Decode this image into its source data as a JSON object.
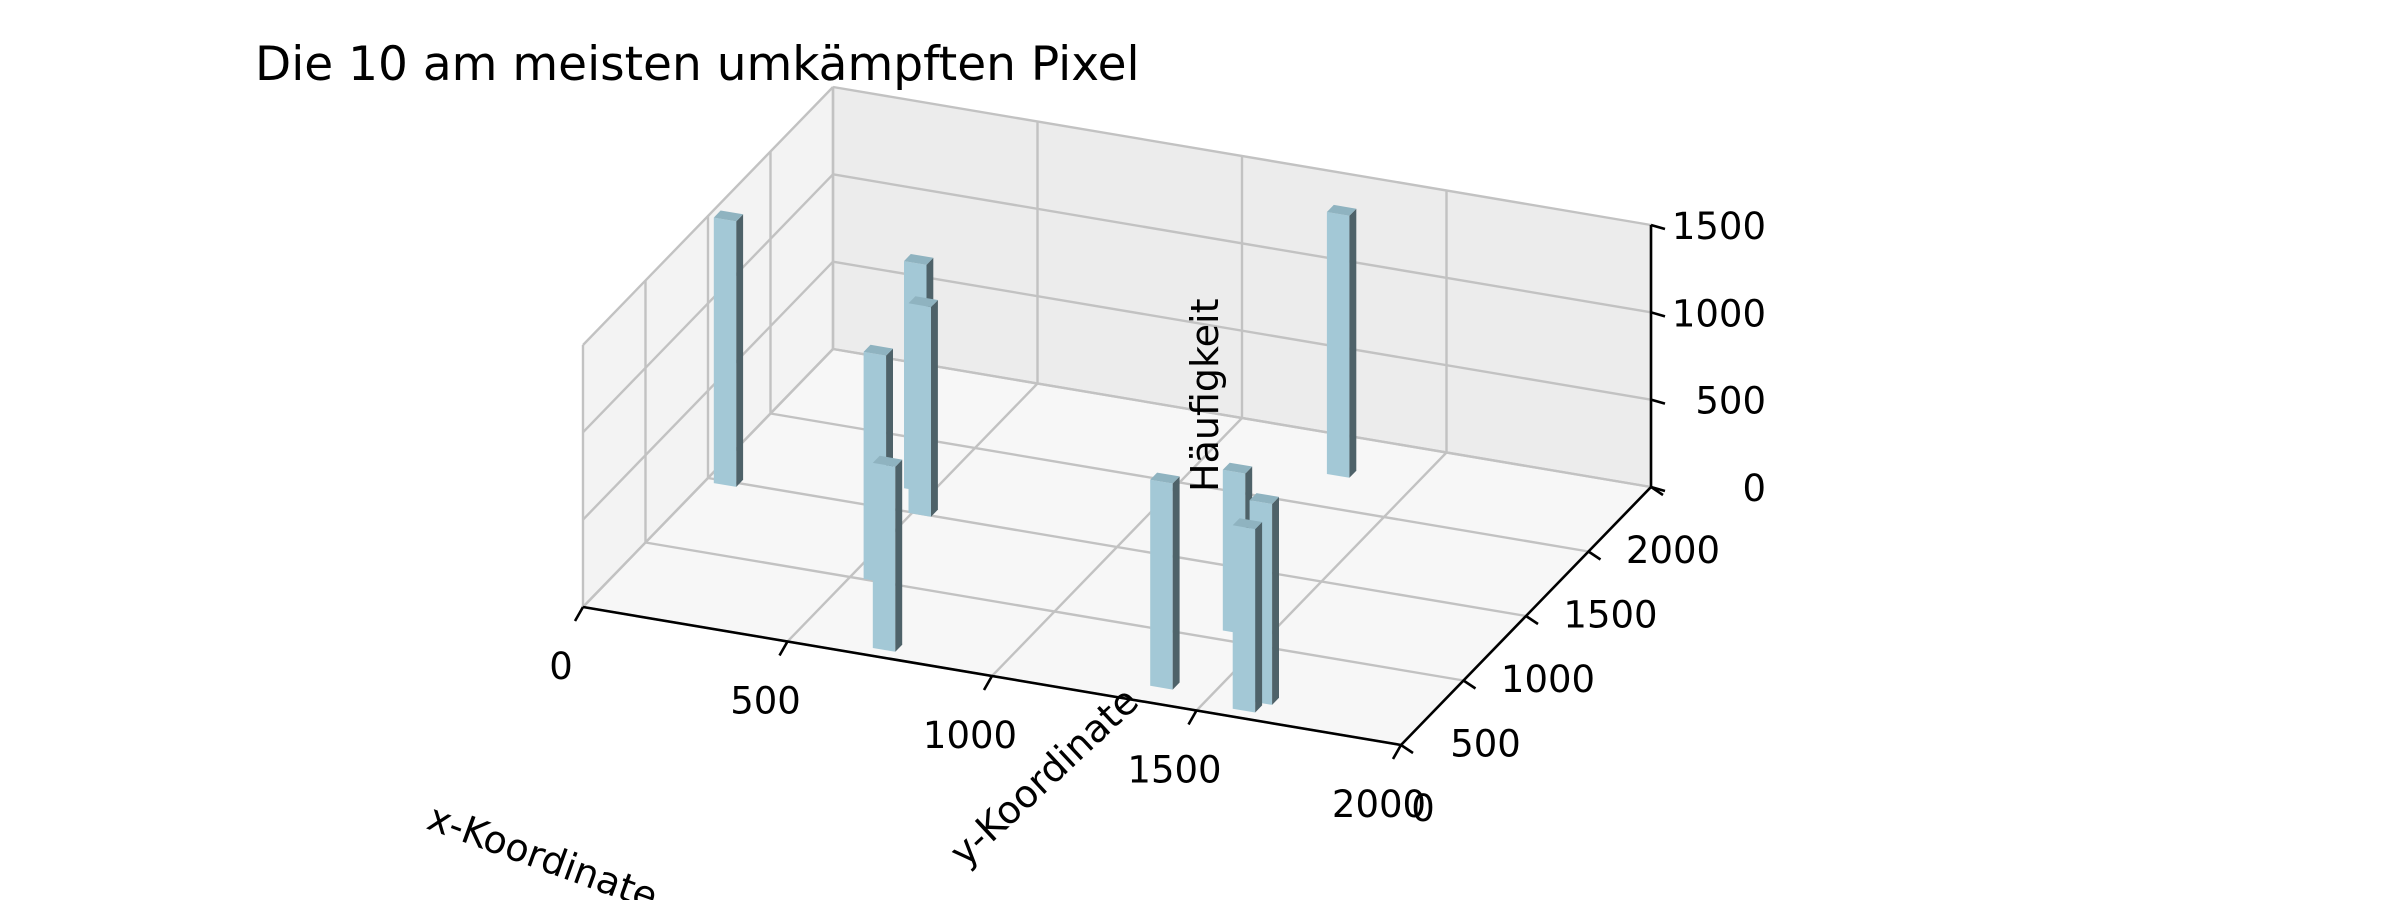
{
  "chart_data": {
    "type": "bar3d",
    "title": "Die 10 am meisten umkämpften Pixel",
    "xlabel": "x-Koordinate",
    "ylabel": "y-Koordinate",
    "zlabel": "Häufigkeit",
    "xlim": [
      0,
      2000
    ],
    "ylim": [
      0,
      2000
    ],
    "zlim": [
      0,
      1500
    ],
    "x_ticks": [
      "0",
      "500",
      "1000",
      "1500",
      "2000"
    ],
    "y_ticks": [
      "0",
      "500",
      "1000",
      "1500",
      "2000"
    ],
    "z_ticks": [
      "0",
      "500",
      "1000",
      "1500"
    ],
    "grid": true,
    "bar_color": "#a3c8d6",
    "bars": [
      {
        "x": 50,
        "y": 1000,
        "z": 1520
      },
      {
        "x": 460,
        "y": 1180,
        "z": 1300
      },
      {
        "x": 1320,
        "y": 1750,
        "z": 1500
      },
      {
        "x": 560,
        "y": 530,
        "z": 1300
      },
      {
        "x": 720,
        "y": 80,
        "z": 1060
      },
      {
        "x": 1420,
        "y": 590,
        "z": 920
      },
      {
        "x": 1380,
        "y": 140,
        "z": 1180
      },
      {
        "x": 1600,
        "y": 80,
        "z": 1050
      },
      {
        "x": 520,
        "y": 1020,
        "z": 1200
      },
      {
        "x": 1620,
        "y": 150,
        "z": 1150
      }
    ]
  },
  "colors": {
    "pane_left": "#f3f3f3",
    "pane_back": "#ececec",
    "pane_floor": "#f7f7f7",
    "grid": "#c2c2c2",
    "axis": "#000000"
  }
}
